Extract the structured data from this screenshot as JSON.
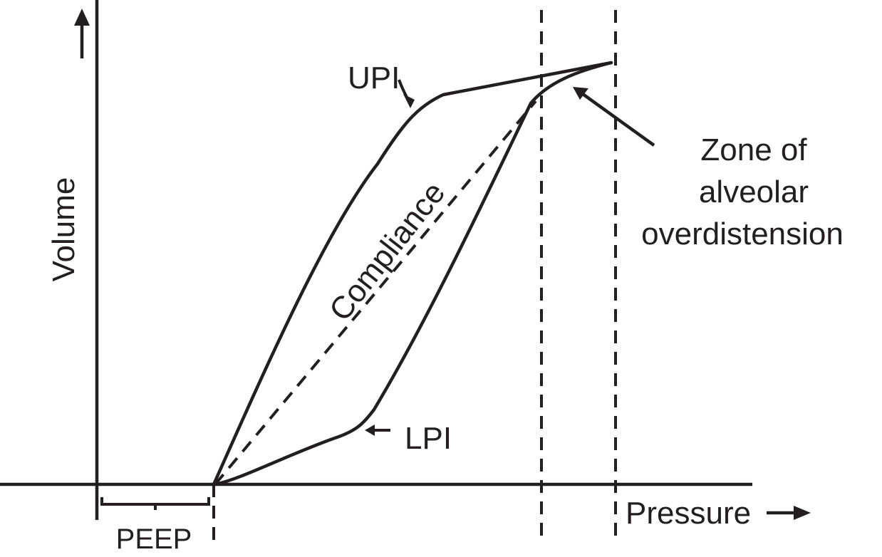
{
  "axes": {
    "y_label": "Volume",
    "x_label": "Pressure"
  },
  "labels": {
    "upi": "UPI",
    "lpi": "LPI",
    "compliance": "Compliance",
    "peep": "PEEP",
    "zone": [
      "Zone of",
      "alveolar",
      "overdistension"
    ]
  },
  "colors": {
    "ink": "#231f20",
    "background": "#ffffff"
  },
  "icons": {
    "y_axis_arrow": "arrow-up-icon",
    "x_axis_arrow": "arrow-right-icon"
  }
}
